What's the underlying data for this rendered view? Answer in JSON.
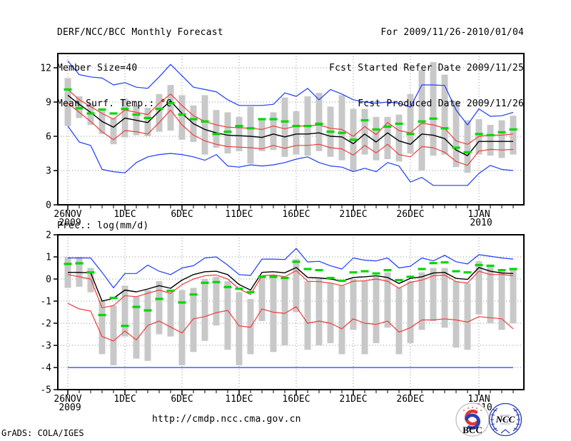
{
  "header": {
    "left": [
      "DERF/NCC/BCC Monthly Forecast",
      "Member Size=40",
      "Mean Surf. Temp.: °C"
    ],
    "right": [
      "For 2009/11/26-2010/01/04",
      "Fcst Started Refer Date 2009/11/25",
      "Fcst Produced Date 2009/11/26"
    ]
  },
  "footer": {
    "url": "http://cmdp.ncc.cma.gov.cn",
    "credit": "GrADS: COLA/IGES"
  },
  "logos": {
    "bcc": "BCC",
    "ncc": "NCC"
  },
  "colors": {
    "max_min": "#1e3cff",
    "quartile": "#f03c3c",
    "mean": "#000000",
    "climatology_dash": "#00d800",
    "spread_bar": "#c8c8c8",
    "grid": "#909090",
    "frame": "#000000",
    "bcc_red": "#d93a3a",
    "logo_blue": "#2c3fb0"
  },
  "chart_data": [
    {
      "type": "line",
      "name": "temperature",
      "title": "Mean Surf. Temp.: °C",
      "n_days": 40,
      "x_tick_indices": [
        0,
        5,
        10,
        15,
        20,
        25,
        30,
        36
      ],
      "x_tick_labels": [
        "26NOV",
        "1DEC",
        "6DEC",
        "11DEC",
        "16DEC",
        "21DEC",
        "26DEC",
        "1JAN"
      ],
      "x_tick_sublabels": {
        "0": "2009",
        "36": "2010"
      },
      "y_ticks": [
        0,
        3,
        6,
        9,
        12
      ],
      "hgrid": [
        3,
        6,
        9,
        12
      ],
      "ylim": [
        0,
        13.25
      ],
      "series": [
        {
          "name": "ensemble-max",
          "color": "max_min",
          "values": [
            12.6,
            11.4,
            11.2,
            11.1,
            10.5,
            10.7,
            10.3,
            10.2,
            11.2,
            12.3,
            11.3,
            10.3,
            10.1,
            9.9,
            9.2,
            8.7,
            8.7,
            8.7,
            8.8,
            9.8,
            9.5,
            10.2,
            9.2,
            10.1,
            9.7,
            9.2,
            9.0,
            8.9,
            9.0,
            8.9,
            8.55,
            10.5,
            10.5,
            10.45,
            8.3,
            7.0,
            8.4,
            7.75,
            7.8,
            8.1
          ]
        },
        {
          "name": "ensemble-min",
          "color": "max_min",
          "values": [
            6.9,
            5.5,
            5.2,
            3.1,
            2.9,
            2.8,
            3.7,
            4.2,
            4.4,
            4.5,
            4.4,
            4.2,
            3.9,
            4.4,
            3.4,
            3.3,
            3.5,
            3.4,
            3.5,
            3.7,
            4.0,
            4.2,
            3.7,
            3.4,
            3.3,
            2.9,
            3.2,
            2.9,
            3.7,
            3.4,
            2.0,
            2.4,
            1.7,
            1.7,
            1.7,
            1.7,
            2.75,
            3.45,
            3.1,
            3.0
          ]
        },
        {
          "name": "upper-quartile",
          "color": "quartile",
          "values": [
            10.1,
            9.2,
            8.6,
            8.0,
            7.5,
            8.3,
            8.1,
            7.9,
            8.9,
            9.7,
            8.7,
            7.8,
            7.3,
            7.0,
            6.8,
            6.75,
            6.7,
            6.6,
            6.9,
            6.65,
            6.9,
            6.9,
            7.0,
            6.7,
            6.6,
            6.0,
            6.85,
            6.15,
            7.2,
            6.5,
            6.3,
            7.15,
            7.0,
            6.7,
            5.6,
            5.3,
            6.0,
            6.1,
            6.1,
            6.2
          ]
        },
        {
          "name": "lower-quartile",
          "color": "quartile",
          "values": [
            8.9,
            8.1,
            7.3,
            6.4,
            5.7,
            6.5,
            6.4,
            6.2,
            7.2,
            8.3,
            7.0,
            6.1,
            5.6,
            5.3,
            5.1,
            5.05,
            5.0,
            4.9,
            5.2,
            4.95,
            5.2,
            5.2,
            5.3,
            5.0,
            4.9,
            4.35,
            5.2,
            4.55,
            5.3,
            4.4,
            4.2,
            5.1,
            5.0,
            4.6,
            3.8,
            3.45,
            4.7,
            4.85,
            4.8,
            4.85
          ]
        },
        {
          "name": "ensemble-mean",
          "color": "mean",
          "values": [
            9.6,
            8.8,
            8.1,
            7.3,
            6.8,
            7.6,
            7.4,
            7.2,
            8.2,
            9.1,
            8.0,
            7.1,
            6.6,
            6.3,
            6.1,
            6.05,
            6.0,
            5.9,
            6.2,
            5.95,
            6.2,
            6.2,
            6.3,
            6.0,
            5.95,
            5.35,
            6.2,
            5.5,
            6.3,
            5.6,
            5.3,
            6.2,
            6.1,
            5.8,
            4.8,
            4.3,
            5.55,
            5.55,
            5.55,
            5.55
          ]
        }
      ],
      "dashes": {
        "name": "climatology",
        "values": [
          10.1,
          8.45,
          8.0,
          8.35,
          8.0,
          8.4,
          7.9,
          7.6,
          8.4,
          8.9,
          7.9,
          7.5,
          7.3,
          6.2,
          6.4,
          6.9,
          6.7,
          7.5,
          7.5,
          7.3,
          6.9,
          6.9,
          7.1,
          6.4,
          6.3,
          5.7,
          7.4,
          6.6,
          6.85,
          7.1,
          6.2,
          7.3,
          7.55,
          6.7,
          5.0,
          4.6,
          6.2,
          6.1,
          6.35,
          6.6
        ]
      },
      "bars": {
        "name": "member-spread",
        "lo": [
          6.9,
          7.6,
          7.0,
          6.2,
          5.3,
          5.9,
          6.1,
          6.0,
          6.4,
          6.5,
          5.7,
          5.5,
          4.4,
          5.0,
          4.5,
          4.7,
          3.6,
          4.7,
          4.8,
          4.2,
          4.4,
          4.3,
          4.7,
          4.2,
          3.9,
          3.0,
          4.4,
          3.9,
          4.0,
          3.8,
          4.5,
          3.0,
          4.3,
          4.4,
          3.3,
          2.8,
          4.4,
          4.3,
          4.1,
          4.4
        ],
        "hi": [
          11.1,
          9.5,
          8.9,
          8.4,
          7.6,
          9.3,
          8.7,
          8.5,
          9.7,
          10.5,
          9.6,
          8.7,
          9.6,
          8.3,
          8.1,
          7.7,
          8.6,
          7.5,
          8.1,
          9.4,
          8.2,
          9.5,
          9.8,
          8.6,
          9.6,
          8.4,
          8.4,
          7.7,
          7.7,
          7.9,
          9.7,
          11.8,
          12.5,
          11.4,
          9.1,
          7.4,
          7.5,
          7.0,
          7.4,
          7.8
        ]
      }
    },
    {
      "type": "line",
      "name": "precipitation",
      "title": "Prec.: log(mm/d)",
      "n_days": 40,
      "x_tick_indices": [
        0,
        5,
        10,
        15,
        20,
        25,
        30,
        36
      ],
      "x_tick_labels": [
        "26NOV",
        "1DEC",
        "6DEC",
        "11DEC",
        "16DEC",
        "21DEC",
        "26DEC",
        "1JAN"
      ],
      "x_tick_sublabels": {
        "0": "2009",
        "36": "2010"
      },
      "y_ticks": [
        2,
        1,
        0,
        -1,
        -2,
        -3,
        -4,
        -5
      ],
      "hgrid": [
        1,
        0,
        -1,
        -2,
        -3,
        -4
      ],
      "ylim": [
        -5,
        2
      ],
      "series": [
        {
          "name": "ensemble-max",
          "color": "max_min",
          "values": [
            0.95,
            0.95,
            0.95,
            0.3,
            -0.4,
            0.25,
            0.25,
            0.63,
            0.35,
            0.2,
            0.5,
            0.6,
            0.95,
            1.0,
            0.63,
            0.2,
            0.16,
            0.9,
            0.9,
            0.88,
            1.38,
            0.77,
            0.8,
            0.6,
            0.45,
            0.95,
            0.85,
            0.82,
            0.95,
            0.5,
            0.58,
            0.95,
            0.82,
            1.07,
            0.78,
            0.68,
            1.1,
            1.03,
            0.95,
            0.9
          ]
        },
        {
          "name": "ensemble-min",
          "color": "max_min",
          "values": [
            -4,
            -4,
            -4,
            -4,
            -4,
            -4,
            -4,
            -4,
            -4,
            -4,
            -4,
            -4,
            -4,
            -4,
            -4,
            -4,
            -4,
            -4,
            -4,
            -4,
            -4,
            -4,
            -4,
            -4,
            -4,
            -4,
            -4,
            -4,
            -4,
            -4,
            -4,
            -4,
            -4,
            -4,
            -4,
            -4,
            -4,
            -4,
            -4,
            -4
          ]
        },
        {
          "name": "upper-quartile",
          "color": "quartile",
          "values": [
            0.2,
            0.1,
            0.0,
            -1.3,
            -1.2,
            -0.75,
            -0.8,
            -0.65,
            -0.5,
            -0.65,
            -0.25,
            0.0,
            0.15,
            0.18,
            0.0,
            -0.45,
            -0.7,
            0.15,
            0.18,
            0.1,
            0.38,
            -0.1,
            -0.12,
            -0.18,
            -0.3,
            -0.1,
            -0.08,
            0.0,
            -0.1,
            -0.42,
            -0.15,
            -0.05,
            0.15,
            0.18,
            -0.12,
            -0.18,
            0.35,
            0.2,
            0.2,
            0.15
          ]
        },
        {
          "name": "lower-quartile",
          "color": "quartile",
          "values": [
            -1.1,
            -1.35,
            -1.45,
            -2.6,
            -2.8,
            -2.35,
            -2.75,
            -2.1,
            -1.9,
            -2.17,
            -2.44,
            -1.8,
            -1.7,
            -1.52,
            -1.42,
            -2.12,
            -2.18,
            -1.35,
            -1.5,
            -1.55,
            -1.25,
            -2.0,
            -1.9,
            -2.0,
            -2.25,
            -1.8,
            -2.0,
            -2.05,
            -1.9,
            -2.4,
            -2.2,
            -1.85,
            -1.85,
            -1.8,
            -1.85,
            -1.95,
            -1.7,
            -1.75,
            -1.8,
            -2.25
          ]
        },
        {
          "name": "ensemble-mean",
          "color": "mean",
          "values": [
            0.3,
            0.3,
            0.28,
            -1.0,
            -0.87,
            -0.5,
            -0.58,
            -0.45,
            -0.3,
            -0.42,
            -0.05,
            0.2,
            0.33,
            0.35,
            0.2,
            -0.25,
            -0.5,
            0.3,
            0.33,
            0.28,
            0.52,
            0.07,
            0.05,
            0.0,
            -0.1,
            0.07,
            0.1,
            0.15,
            0.07,
            -0.2,
            0.03,
            0.1,
            0.27,
            0.3,
            0.03,
            -0.02,
            0.52,
            0.35,
            0.27,
            0.25
          ]
        }
      ],
      "dashes": {
        "name": "climatology",
        "values": [
          0.68,
          0.71,
          0.3,
          -1.63,
          -0.85,
          -2.12,
          -1.26,
          -1.42,
          -0.9,
          -0.53,
          -1.06,
          -0.7,
          -0.17,
          -0.14,
          -0.36,
          -0.44,
          -0.59,
          0.1,
          0.1,
          0.05,
          0.78,
          0.45,
          0.4,
          0.05,
          -0.08,
          0.3,
          0.35,
          0.25,
          0.4,
          -0.05,
          0.1,
          0.45,
          0.72,
          0.75,
          0.35,
          0.3,
          0.63,
          0.6,
          0.4,
          0.45
        ]
      },
      "bars": {
        "name": "member-spread",
        "lo": [
          -0.4,
          -0.35,
          -0.6,
          -3.4,
          -3.9,
          -2.6,
          -3.6,
          -3.7,
          -2.5,
          -2.6,
          -3.9,
          -3.3,
          -2.8,
          -2.1,
          -3.2,
          -3.9,
          -3.4,
          -1.9,
          -3.3,
          -3.0,
          -1.5,
          -3.2,
          -3.0,
          -2.9,
          -3.4,
          -2.3,
          -3.4,
          -2.9,
          -2.2,
          -3.4,
          -2.9,
          -2.3,
          -1.9,
          -2.2,
          -3.1,
          -3.2,
          -1.6,
          -2.0,
          -2.3,
          -2.0
        ],
        "hi": [
          1.0,
          1.0,
          0.5,
          -0.95,
          -1.2,
          -0.3,
          -0.8,
          -0.5,
          -0.1,
          -0.6,
          -0.5,
          -0.4,
          0.0,
          0.1,
          -0.1,
          -0.6,
          -0.9,
          0.1,
          0.2,
          0.1,
          0.9,
          -0.1,
          0.0,
          -0.2,
          -0.3,
          0.0,
          -0.1,
          0.1,
          0.3,
          -0.4,
          -0.1,
          0.3,
          0.5,
          0.5,
          -0.1,
          -0.2,
          0.8,
          0.6,
          0.4,
          0.5
        ]
      }
    }
  ]
}
